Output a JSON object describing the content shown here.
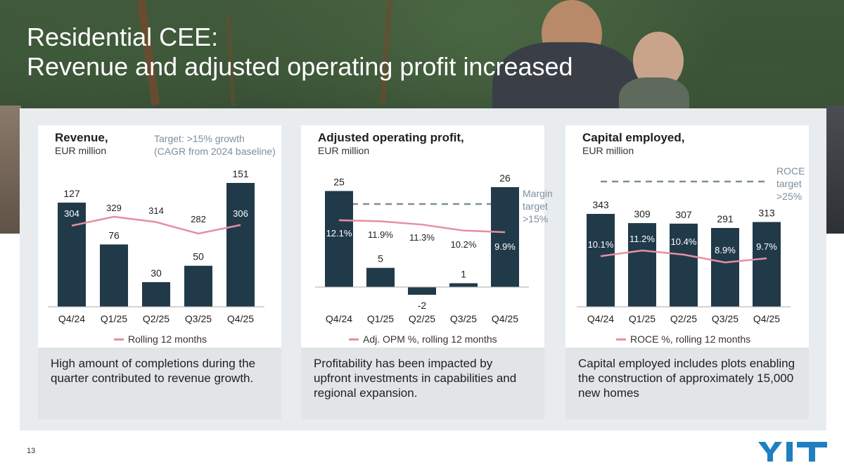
{
  "slide": {
    "title_line1": "Residential CEE:",
    "title_line2": "Revenue and adjusted operating profit increased",
    "page_number": "13",
    "logo_text": "YIT"
  },
  "colors": {
    "bar": "#213a4a",
    "line": "#e68fa1",
    "target": "#7d8f9c",
    "panel": "#e8ecef"
  },
  "chart_data": [
    {
      "type": "bar",
      "title": "Revenue,",
      "subtitle": "EUR million",
      "target_note": [
        "Target: >15% growth",
        "(CAGR from 2024 baseline)"
      ],
      "categories": [
        "Q4/24",
        "Q1/25",
        "Q2/25",
        "Q3/25",
        "Q4/25"
      ],
      "series": [
        {
          "values": [
            127,
            76,
            30,
            50,
            151
          ]
        },
        {
          "name": "Rolling 12 months",
          "type": "line",
          "values": [
            304,
            329,
            314,
            282,
            306
          ]
        }
      ],
      "value_labels": [
        "127",
        "76",
        "30",
        "50",
        "151"
      ],
      "line_labels": [
        "304",
        "329",
        "314",
        "282",
        "306"
      ],
      "legend": "Rolling 12 months",
      "footnote": "High amount of completions during the quarter contributed to revenue growth."
    },
    {
      "type": "bar",
      "title": "Adjusted operating profit,",
      "subtitle": "EUR million",
      "categories": [
        "Q4/24",
        "Q1/25",
        "Q2/25",
        "Q3/25",
        "Q4/25"
      ],
      "series": [
        {
          "values": [
            25,
            5,
            -2,
            1,
            26
          ]
        },
        {
          "name": "Adj. OPM %, rolling 12 months",
          "type": "line",
          "values": [
            12.1,
            11.9,
            11.3,
            10.2,
            9.9
          ]
        }
      ],
      "value_labels": [
        "25",
        "5",
        "-2",
        "1",
        "26"
      ],
      "line_labels": [
        "12.1%",
        "11.9%",
        "11.3%",
        "10.2%",
        "9.9%"
      ],
      "target_line": {
        "value": 15,
        "label": [
          "Margin",
          "target",
          ">15%"
        ]
      },
      "legend": "Adj. OPM %, rolling 12 months",
      "footnote": "Profitability has been impacted by upfront investments in capabilities and regional expansion."
    },
    {
      "type": "bar",
      "title": "Capital employed,",
      "subtitle": "EUR million",
      "categories": [
        "Q4/24",
        "Q1/25",
        "Q2/25",
        "Q3/25",
        "Q4/25"
      ],
      "series": [
        {
          "values": [
            343,
            309,
            307,
            291,
            313
          ]
        },
        {
          "name": "ROCE %, rolling 12 months",
          "type": "line",
          "values": [
            10.1,
            11.2,
            10.4,
            8.9,
            9.7
          ]
        }
      ],
      "value_labels": [
        "343",
        "309",
        "307",
        "291",
        "313"
      ],
      "line_labels": [
        "10.1%",
        "11.2%",
        "10.4%",
        "8.9%",
        "9.7%"
      ],
      "target_line": {
        "value": 25,
        "label": [
          "ROCE",
          "target",
          ">25%"
        ]
      },
      "legend": "ROCE %, rolling 12 months",
      "footnote": "Capital employed includes plots enabling the construction of approximately 15,000 new homes"
    }
  ]
}
